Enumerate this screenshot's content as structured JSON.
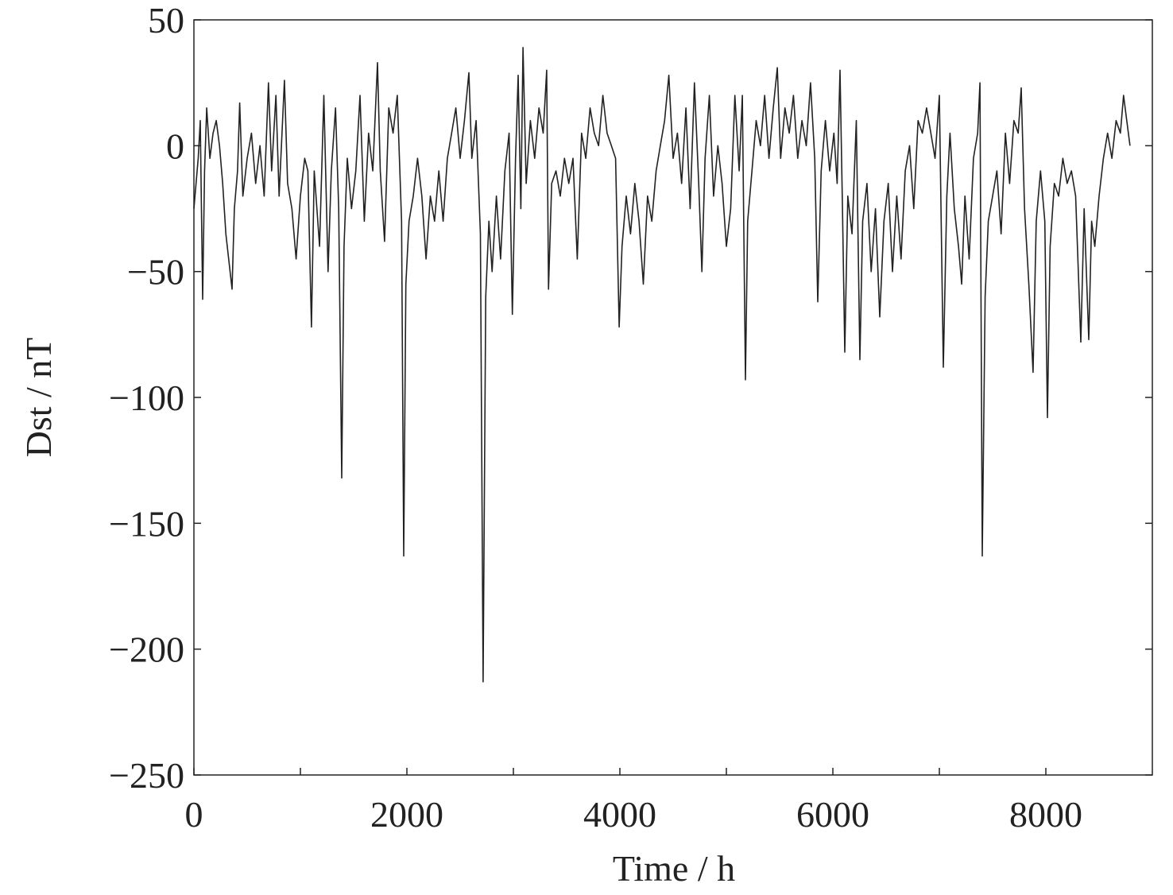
{
  "chart_data": {
    "type": "line",
    "xlabel": "Time / h",
    "ylabel": "Dst / nT",
    "xlim": [
      0,
      9000
    ],
    "ylim": [
      -250,
      50
    ],
    "xticks": [
      0,
      2000,
      4000,
      6000,
      8000
    ],
    "xminorticks": [
      1000,
      3000,
      5000,
      7000
    ],
    "yticks": [
      {
        "value": -250,
        "label": "−250"
      },
      {
        "value": -200,
        "label": "−200"
      },
      {
        "value": -150,
        "label": "−150"
      },
      {
        "value": -100,
        "label": "−100"
      },
      {
        "value": -50,
        "label": "−50"
      },
      0,
      50
    ],
    "color": "#222222",
    "x": [
      0,
      40,
      60,
      82,
      100,
      120,
      150,
      180,
      210,
      240,
      270,
      300,
      358,
      380,
      410,
      430,
      460,
      500,
      540,
      580,
      620,
      660,
      700,
      730,
      770,
      800,
      850,
      880,
      920,
      960,
      1000,
      1040,
      1070,
      1104,
      1130,
      1180,
      1220,
      1260,
      1290,
      1330,
      1360,
      1388,
      1410,
      1440,
      1480,
      1520,
      1560,
      1600,
      1640,
      1680,
      1724,
      1750,
      1790,
      1830,
      1870,
      1910,
      1950,
      1970,
      1990,
      2020,
      2060,
      2100,
      2140,
      2180,
      2220,
      2260,
      2300,
      2340,
      2380,
      2420,
      2460,
      2500,
      2540,
      2582,
      2610,
      2650,
      2690,
      2716,
      2740,
      2770,
      2800,
      2840,
      2880,
      2920,
      2960,
      2990,
      3020,
      3045,
      3070,
      3090,
      3120,
      3160,
      3200,
      3240,
      3280,
      3313,
      3330,
      3360,
      3400,
      3440,
      3480,
      3520,
      3560,
      3600,
      3640,
      3680,
      3720,
      3760,
      3800,
      3840,
      3880,
      3920,
      3960,
      3993,
      4020,
      4060,
      4100,
      4140,
      4180,
      4220,
      4260,
      4300,
      4340,
      4380,
      4420,
      4460,
      4500,
      4540,
      4580,
      4620,
      4660,
      4700,
      4740,
      4770,
      4800,
      4840,
      4880,
      4920,
      4960,
      5000,
      5040,
      5080,
      5120,
      5150,
      5179,
      5200,
      5240,
      5280,
      5320,
      5360,
      5400,
      5440,
      5478,
      5510,
      5550,
      5590,
      5630,
      5670,
      5710,
      5750,
      5790,
      5830,
      5858,
      5890,
      5930,
      5970,
      6010,
      6040,
      6067,
      6090,
      6112,
      6140,
      6180,
      6220,
      6254,
      6280,
      6320,
      6360,
      6400,
      6440,
      6480,
      6520,
      6560,
      6600,
      6640,
      6680,
      6720,
      6760,
      6800,
      6840,
      6880,
      6920,
      6960,
      7000,
      7037,
      7070,
      7100,
      7140,
      7180,
      7210,
      7240,
      7280,
      7320,
      7360,
      7381,
      7403,
      7430,
      7460,
      7500,
      7540,
      7580,
      7620,
      7660,
      7700,
      7740,
      7769,
      7800,
      7840,
      7880,
      7910,
      7950,
      7990,
      8015,
      8040,
      8080,
      8120,
      8160,
      8200,
      8240,
      8280,
      8328,
      8360,
      8403,
      8430,
      8460,
      8500,
      8540,
      8580,
      8620,
      8660,
      8700,
      8730,
      8760,
      8790
    ],
    "y": [
      -25,
      -5,
      10,
      -61,
      -10,
      15,
      -5,
      5,
      10,
      0,
      -15,
      -35,
      -57,
      -25,
      -10,
      17,
      -20,
      -5,
      5,
      -15,
      0,
      -20,
      25,
      -10,
      20,
      -20,
      26,
      -15,
      -25,
      -45,
      -20,
      -5,
      -10,
      -72,
      -10,
      -40,
      20,
      -50,
      -10,
      15,
      -25,
      -132,
      -40,
      -5,
      -25,
      -10,
      20,
      -30,
      5,
      -10,
      33,
      -10,
      -38,
      15,
      5,
      20,
      -30,
      -163,
      -55,
      -30,
      -20,
      -5,
      -20,
      -45,
      -20,
      -30,
      -10,
      -30,
      -5,
      5,
      15,
      -5,
      10,
      29,
      -5,
      10,
      -35,
      -213,
      -60,
      -30,
      -50,
      -20,
      -45,
      -10,
      5,
      -67,
      -5,
      28,
      -25,
      39,
      -15,
      10,
      -5,
      15,
      5,
      30,
      -57,
      -15,
      -10,
      -20,
      -5,
      -15,
      -5,
      -45,
      5,
      -5,
      15,
      5,
      0,
      20,
      5,
      0,
      -5,
      -72,
      -40,
      -20,
      -35,
      -15,
      -30,
      -55,
      -20,
      -30,
      -10,
      0,
      10,
      28,
      -5,
      5,
      -15,
      15,
      -25,
      25,
      -15,
      -50,
      -5,
      20,
      -20,
      0,
      -15,
      -40,
      -25,
      20,
      -10,
      20,
      -93,
      -30,
      -10,
      10,
      0,
      20,
      -5,
      15,
      31,
      -5,
      15,
      5,
      20,
      -5,
      10,
      0,
      25,
      -5,
      -62,
      -10,
      10,
      -10,
      5,
      -15,
      30,
      -25,
      -82,
      -20,
      -35,
      10,
      -85,
      -30,
      -15,
      -50,
      -25,
      -68,
      -30,
      -15,
      -50,
      -20,
      -45,
      -10,
      0,
      -25,
      10,
      5,
      15,
      5,
      -5,
      20,
      -88,
      -20,
      5,
      -25,
      -40,
      -55,
      -20,
      -45,
      -5,
      5,
      25,
      -163,
      -60,
      -30,
      -20,
      -10,
      -35,
      5,
      -15,
      10,
      5,
      23,
      -25,
      -55,
      -90,
      -30,
      -10,
      -30,
      -108,
      -40,
      -15,
      -20,
      -5,
      -15,
      -10,
      -20,
      -78,
      -25,
      -77,
      -30,
      -40,
      -20,
      -5,
      5,
      -5,
      10,
      5,
      20,
      10,
      0
    ]
  }
}
